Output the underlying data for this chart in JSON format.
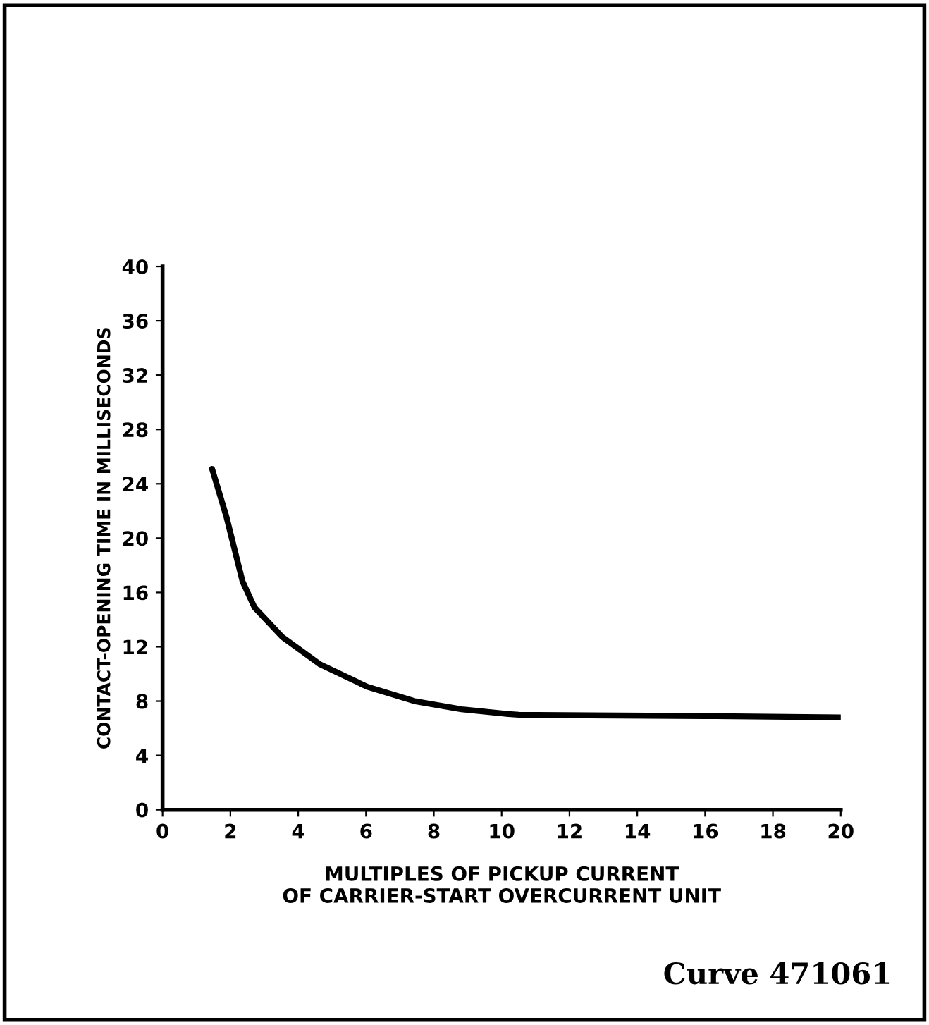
{
  "chart_data": {
    "type": "line",
    "xlabel": "MULTIPLES OF PICKUP CURRENT\nOF CARRIER-START OVERCURRENT UNIT",
    "ylabel": "CONTACT-OPENING TIME IN MILLISECONDS",
    "x": [
      1.46,
      1.88,
      2.36,
      2.71,
      3.54,
      4.65,
      6.04,
      7.43,
      8.82,
      10.2,
      10.5,
      12.6,
      16,
      20
    ],
    "series": [
      {
        "color": "#000000",
        "values": [
          25.1,
          21.6,
          16.8,
          14.9,
          12.7,
          10.7,
          9.05,
          8.0,
          7.4,
          7.05,
          7.0,
          6.95,
          6.9,
          6.8
        ]
      }
    ],
    "xlim": [
      0,
      20
    ],
    "ylim": [
      0,
      40
    ],
    "xticks": [
      0,
      2,
      4,
      6,
      8,
      10,
      12,
      14,
      16,
      18,
      20
    ],
    "yticks": [
      0,
      4,
      8,
      12,
      16,
      20,
      24,
      28,
      32,
      36,
      40
    ],
    "grid": false,
    "legend": false,
    "marker": "none",
    "line_style": "solid",
    "annotations": [
      "Curve 471061"
    ]
  }
}
